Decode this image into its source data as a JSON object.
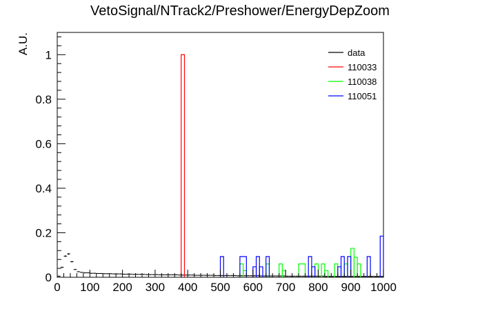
{
  "chart_data": {
    "type": "line",
    "title": "VetoSignal/NTrack2/Preshower/EnergyDepZoom",
    "xlabel": "",
    "ylabel": "A.U.",
    "xlim": [
      0,
      1000
    ],
    "ylim": [
      0,
      1.1
    ],
    "x_ticks": [
      "0",
      "100",
      "200",
      "300",
      "400",
      "500",
      "600",
      "700",
      "800",
      "900",
      "1000"
    ],
    "y_ticks": [
      "0",
      "0.2",
      "0.4",
      "0.6",
      "0.8",
      "1"
    ],
    "grid": false,
    "legend_position": "top-right",
    "legend": [
      "data",
      "110033",
      "110038",
      "110051"
    ],
    "series": [
      {
        "name": "data",
        "color": "#000000",
        "style": "errorbar",
        "bin_width": 10,
        "x": [
          5,
          15,
          25,
          35,
          45,
          55,
          65,
          75,
          85,
          95,
          105,
          115,
          125,
          135,
          145,
          155,
          165,
          175,
          185,
          195,
          205,
          215,
          225,
          235,
          245,
          255,
          265,
          275,
          285,
          295,
          305,
          315,
          325,
          335,
          345,
          355,
          365,
          375,
          385,
          395,
          405,
          415,
          425,
          435,
          445,
          455,
          465,
          475,
          485,
          495,
          505,
          515,
          525,
          535,
          545,
          555,
          565,
          575,
          585,
          595,
          605,
          615,
          625,
          635,
          645,
          655,
          665,
          675,
          685,
          695,
          705,
          715,
          725,
          735,
          745,
          755,
          765,
          775,
          785,
          795,
          805,
          815,
          825,
          835,
          845,
          855,
          865,
          875,
          885,
          895,
          905,
          915,
          925,
          935,
          945,
          955,
          965,
          975,
          985,
          995
        ],
        "values": [
          0.005,
          0.045,
          0.095,
          0.105,
          0.07,
          0.035,
          0.025,
          0.022,
          0.02,
          0.02,
          0.018,
          0.018,
          0.017,
          0.017,
          0.016,
          0.016,
          0.016,
          0.015,
          0.015,
          0.015,
          0.014,
          0.014,
          0.014,
          0.013,
          0.013,
          0.013,
          0.013,
          0.012,
          0.012,
          0.012,
          0.012,
          0.011,
          0.011,
          0.011,
          0.011,
          0.011,
          0.011,
          0.01,
          0.01,
          0.01,
          0.01,
          0.01,
          0.009,
          0.009,
          0.009,
          0.009,
          0.009,
          0.009,
          0.008,
          0.008,
          0.008,
          0.008,
          0.008,
          0.008,
          0.008,
          0.007,
          0.007,
          0.007,
          0.007,
          0.007,
          0.007,
          0.007,
          0.006,
          0.006,
          0.006,
          0.006,
          0.006,
          0.006,
          0.006,
          0.006,
          0.005,
          0.005,
          0.005,
          0.005,
          0.005,
          0.005,
          0.005,
          0.005,
          0.005,
          0.005,
          0.005,
          0.005,
          0.004,
          0.004,
          0.004,
          0.004,
          0.004,
          0.004,
          0.004,
          0.004,
          0.004,
          0.004,
          0.004,
          0.004,
          0.004,
          0.004,
          0.004,
          0.004,
          0.004,
          0.004
        ]
      },
      {
        "name": "110033",
        "color": "#ff0000",
        "style": "step",
        "bins": [
          [
            380,
            390,
            1.0
          ]
        ]
      },
      {
        "name": "110038",
        "color": "#00ff00",
        "style": "step",
        "bins": [
          [
            560,
            570,
            0.06
          ],
          [
            570,
            580,
            0.03
          ],
          [
            640,
            650,
            0.06
          ],
          [
            680,
            690,
            0.06
          ],
          [
            690,
            700,
            0.03
          ],
          [
            740,
            760,
            0.06
          ],
          [
            790,
            800,
            0.06
          ],
          [
            810,
            820,
            0.06
          ],
          [
            820,
            830,
            0.03
          ],
          [
            850,
            860,
            0.06
          ],
          [
            880,
            890,
            0.06
          ],
          [
            900,
            910,
            0.13
          ],
          [
            910,
            920,
            0.09
          ],
          [
            920,
            930,
            0.06
          ]
        ]
      },
      {
        "name": "110051",
        "color": "#0000ff",
        "style": "step",
        "bins": [
          [
            500,
            510,
            0.093
          ],
          [
            560,
            580,
            0.093
          ],
          [
            600,
            610,
            0.047
          ],
          [
            610,
            620,
            0.093
          ],
          [
            620,
            630,
            0.047
          ],
          [
            640,
            650,
            0.093
          ],
          [
            770,
            780,
            0.093
          ],
          [
            780,
            790,
            0.047
          ],
          [
            860,
            870,
            0.047
          ],
          [
            870,
            880,
            0.093
          ],
          [
            890,
            900,
            0.093
          ],
          [
            950,
            960,
            0.093
          ],
          [
            990,
            1000,
            0.185
          ]
        ]
      }
    ]
  }
}
